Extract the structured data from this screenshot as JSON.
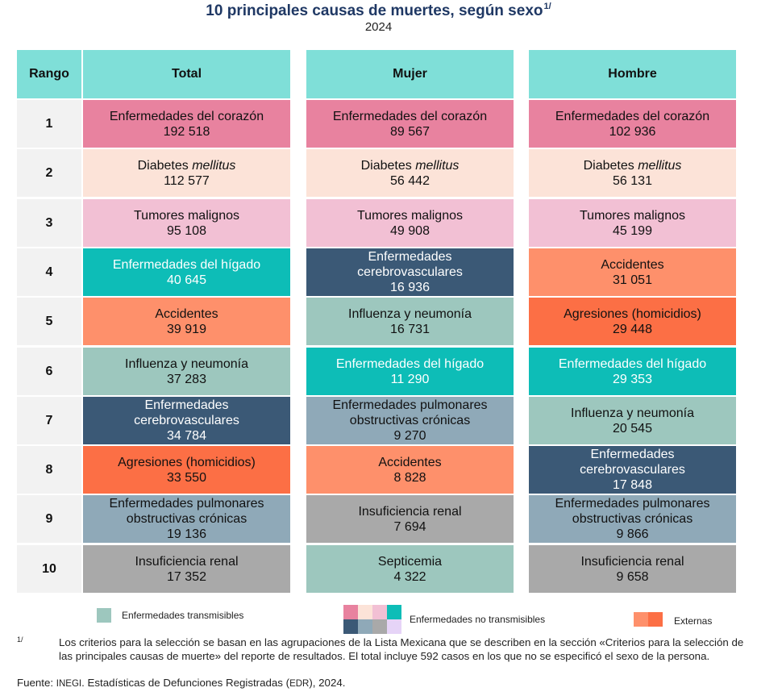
{
  "title": "10 principales causas de muertes, según sexo",
  "title_note": "1/",
  "year": "2024",
  "headers": {
    "rank": "Rango",
    "total": "Total",
    "female": "Mujer",
    "male": "Hombre"
  },
  "colors": {
    "header": "#7fdfd8",
    "rank_bg": "#f2f2f2",
    "corazon": "#e8829f",
    "diabetes": "#fce3d8",
    "tumores": "#f2c0d4",
    "higado": "#0dbdb7",
    "cerebro": "#3b5976",
    "pulmonar": "#8fa9b8",
    "renal": "#a9a9a9",
    "influenza": "#9dc7be",
    "septicemia": "#9dc7be",
    "accidentes": "#fe906b",
    "agresiones": "#fc6f45"
  },
  "rows": [
    {
      "rank": "1",
      "total": {
        "cause": "Enfermedades del corazón",
        "value": "192 518"
      },
      "female": {
        "cause": "Enfermedades del corazón",
        "value": "89 567"
      },
      "male": {
        "cause": "Enfermedades del corazón",
        "value": "102 936"
      }
    },
    {
      "rank": "2",
      "total": {
        "cause": "Diabetes",
        "cause_italic": "mellitus",
        "value": "112 577"
      },
      "female": {
        "cause": "Diabetes",
        "cause_italic": "mellitus",
        "value": "56 442"
      },
      "male": {
        "cause": "Diabetes",
        "cause_italic": "mellitus",
        "value": "56 131"
      }
    },
    {
      "rank": "3",
      "total": {
        "cause": "Tumores malignos",
        "value": "95 108"
      },
      "female": {
        "cause": "Tumores malignos",
        "value": "49 908"
      },
      "male": {
        "cause": "Tumores malignos",
        "value": "45 199"
      }
    },
    {
      "rank": "4",
      "total": {
        "cause": "Enfermedades del hígado",
        "value": "40 645"
      },
      "female": {
        "cause": "Enfermedades",
        "cause2": "cerebrovasculares",
        "value": "16 936"
      },
      "male": {
        "cause": "Accidentes",
        "value": "31 051"
      }
    },
    {
      "rank": "5",
      "total": {
        "cause": "Accidentes",
        "value": "39 919"
      },
      "female": {
        "cause": "Influenza y neumonía",
        "value": "16 731"
      },
      "male": {
        "cause": "Agresiones (homicidios)",
        "value": "29 448"
      }
    },
    {
      "rank": "6",
      "total": {
        "cause": "Influenza y neumonía",
        "value": "37 283"
      },
      "female": {
        "cause": "Enfermedades del hígado",
        "value": "11 290"
      },
      "male": {
        "cause": "Enfermedades del hígado",
        "value": "29 353"
      }
    },
    {
      "rank": "7",
      "total": {
        "cause": "Enfermedades",
        "cause2": "cerebrovasculares",
        "value": "34 784"
      },
      "female": {
        "cause": "Enfermedades pulmonares",
        "cause2": "obstructivas crónicas",
        "value": "9 270"
      },
      "male": {
        "cause": "Influenza y neumonía",
        "value": "20 545"
      }
    },
    {
      "rank": "8",
      "total": {
        "cause": "Agresiones (homicidios)",
        "value": "33 550"
      },
      "female": {
        "cause": "Accidentes",
        "value": "8 828"
      },
      "male": {
        "cause": "Enfermedades",
        "cause2": "cerebrovasculares",
        "value": "17 848"
      }
    },
    {
      "rank": "9",
      "total": {
        "cause": "Enfermedades pulmonares",
        "cause2": "obstructivas crónicas",
        "value": "19 136"
      },
      "female": {
        "cause": "Insuficiencia renal",
        "value": "7 694"
      },
      "male": {
        "cause": "Enfermedades pulmonares",
        "cause2": "obstructivas crónicas",
        "value": "9 866"
      }
    },
    {
      "rank": "10",
      "total": {
        "cause": "Insuficiencia renal",
        "value": "17 352"
      },
      "female": {
        "cause": "Septicemia",
        "value": "4 322"
      },
      "male": {
        "cause": "Insuficiencia renal",
        "value": "9 658"
      }
    }
  ],
  "legend": {
    "transmisibles": "Enfermedades transmisibles",
    "no_transmisibles": "Enfermedades no transmisibles",
    "externas": "Externas"
  },
  "footnote_mark": "1/",
  "footnote": "Los criterios para la selección se basan en las agrupaciones de la Lista Mexicana que se describen en la sección «Criterios para la selección de las principales causas de muerte» del reporte de resultados. El total incluye 592 casos en los que no se especificó el sexo de la persona.",
  "source_label": "Fuente:",
  "source_org": "INEGI",
  "source_text": ". Estadísticas de Defunciones Registradas (",
  "source_abbr": "EDR",
  "source_end": "), 2024."
}
